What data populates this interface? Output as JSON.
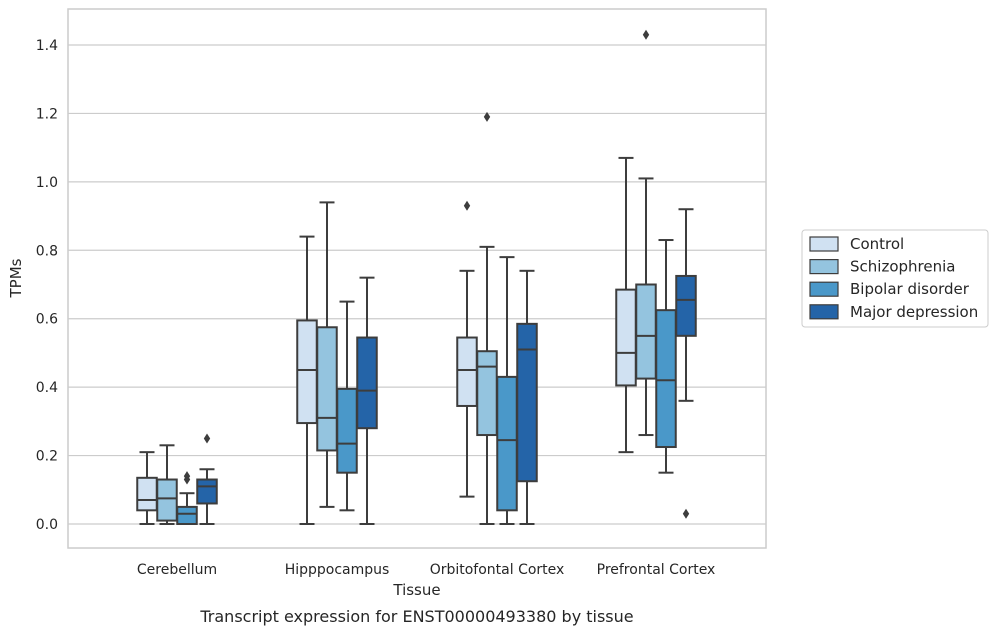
{
  "chart_data": {
    "type": "box",
    "xlabel": "Tissue",
    "ylabel": "TPMs",
    "caption": "Transcript expression for ENST00000493380 by tissue",
    "ylim": [
      -0.07,
      1.5
    ],
    "yticks": [
      "0.0",
      "0.2",
      "0.4",
      "0.6",
      "0.8",
      "1.0",
      "1.2",
      "1.4"
    ],
    "ytick_values": [
      0.0,
      0.2,
      0.4,
      0.6,
      0.8,
      1.0,
      1.2,
      1.4
    ],
    "grid": "horizontal",
    "legend_position": "right",
    "categories": [
      "Cerebellum",
      "Hipppocampus",
      "Orbitofontal Cortex",
      "Prefrontal Cortex"
    ],
    "series": [
      {
        "name": "Control",
        "color": "#d0e1f2",
        "boxes": [
          {
            "whislo": 0.0,
            "q1": 0.04,
            "med": 0.07,
            "q3": 0.135,
            "whishi": 0.21,
            "fliers": []
          },
          {
            "whislo": 0.0,
            "q1": 0.295,
            "med": 0.45,
            "q3": 0.595,
            "whishi": 0.84,
            "fliers": []
          },
          {
            "whislo": 0.08,
            "q1": 0.345,
            "med": 0.45,
            "q3": 0.545,
            "whishi": 0.74,
            "fliers": [
              0.93
            ]
          },
          {
            "whislo": 0.21,
            "q1": 0.405,
            "med": 0.5,
            "q3": 0.685,
            "whishi": 1.07,
            "fliers": []
          }
        ]
      },
      {
        "name": "Schizophrenia",
        "color": "#94c4df",
        "boxes": [
          {
            "whislo": 0.0,
            "q1": 0.01,
            "med": 0.075,
            "q3": 0.13,
            "whishi": 0.23,
            "fliers": []
          },
          {
            "whislo": 0.05,
            "q1": 0.215,
            "med": 0.31,
            "q3": 0.575,
            "whishi": 0.94,
            "fliers": []
          },
          {
            "whislo": 0.0,
            "q1": 0.26,
            "med": 0.46,
            "q3": 0.505,
            "whishi": 0.81,
            "fliers": [
              1.19
            ]
          },
          {
            "whislo": 0.26,
            "q1": 0.425,
            "med": 0.55,
            "q3": 0.7,
            "whishi": 1.01,
            "fliers": [
              1.43
            ]
          }
        ]
      },
      {
        "name": "Bipolar disorder",
        "color": "#4a98c9",
        "boxes": [
          {
            "whislo": 0.0,
            "q1": 0.0,
            "med": 0.03,
            "q3": 0.05,
            "whishi": 0.09,
            "fliers": [
              0.13,
              0.14
            ]
          },
          {
            "whislo": 0.04,
            "q1": 0.15,
            "med": 0.235,
            "q3": 0.395,
            "whishi": 0.65,
            "fliers": []
          },
          {
            "whislo": 0.0,
            "q1": 0.04,
            "med": 0.245,
            "q3": 0.43,
            "whishi": 0.78,
            "fliers": []
          },
          {
            "whislo": 0.15,
            "q1": 0.225,
            "med": 0.42,
            "q3": 0.625,
            "whishi": 0.83,
            "fliers": []
          }
        ]
      },
      {
        "name": "Major depression",
        "color": "#2464a8",
        "boxes": [
          {
            "whislo": 0.0,
            "q1": 0.06,
            "med": 0.11,
            "q3": 0.13,
            "whishi": 0.16,
            "fliers": [
              0.25
            ]
          },
          {
            "whislo": 0.0,
            "q1": 0.28,
            "med": 0.39,
            "q3": 0.545,
            "whishi": 0.72,
            "fliers": []
          },
          {
            "whislo": 0.0,
            "q1": 0.125,
            "med": 0.51,
            "q3": 0.585,
            "whishi": 0.74,
            "fliers": []
          },
          {
            "whislo": 0.36,
            "q1": 0.55,
            "med": 0.655,
            "q3": 0.725,
            "whishi": 0.92,
            "fliers": [
              0.03
            ]
          }
        ]
      }
    ]
  }
}
